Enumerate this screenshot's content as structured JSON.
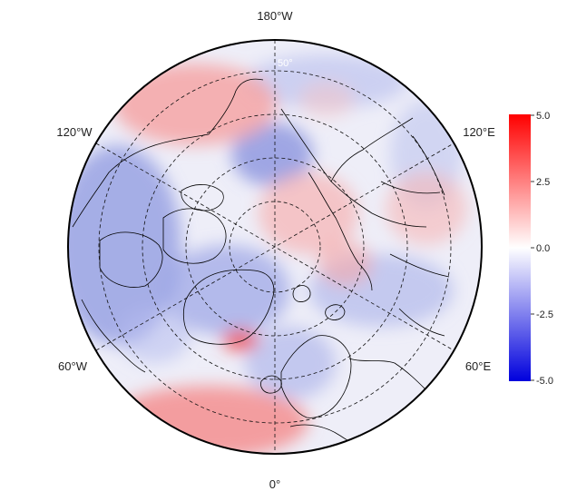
{
  "map": {
    "projection": "north-polar-stereographic",
    "lon_labels": {
      "top": "180°W",
      "upper_left": "120°W",
      "upper_right": "120°E",
      "lower_left": "60°W",
      "lower_right": "60°E",
      "bottom": "0°"
    },
    "lat_label": "50°",
    "graticule": "dashed",
    "coastlines": "black"
  },
  "colorbar": {
    "ticks": [
      "5.0",
      "2.5",
      "0.0",
      "-2.5",
      "-5.0"
    ],
    "range": [
      -5.0,
      5.0
    ],
    "colors": {
      "high": "#ff0000",
      "mid": "#ffffff",
      "low": "#0000dd"
    }
  }
}
